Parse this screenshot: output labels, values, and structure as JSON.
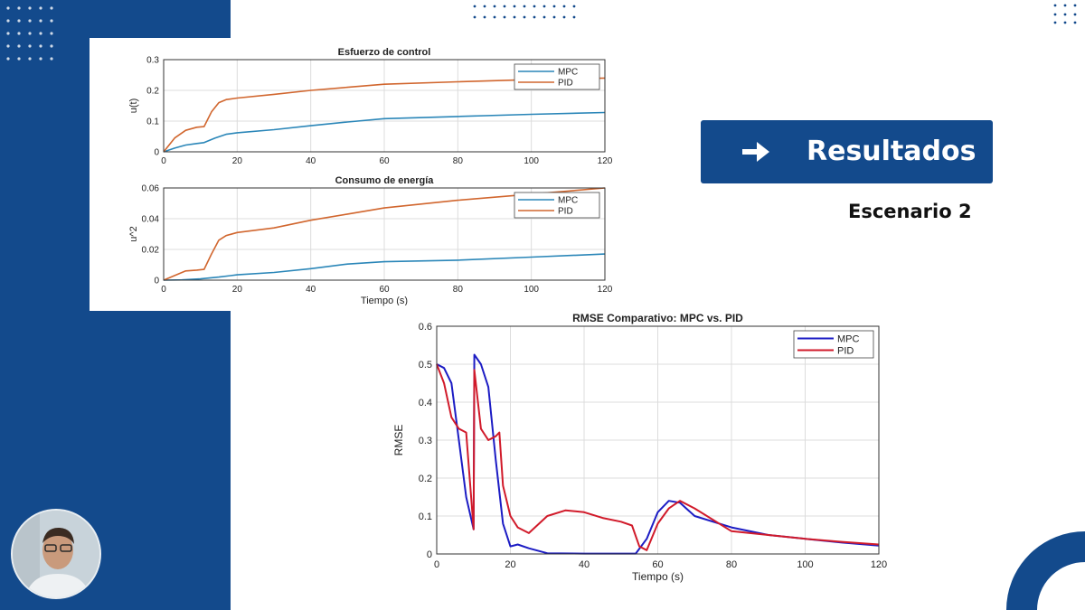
{
  "slide": {
    "title": "Resultados",
    "subtitle": "Escenario 2",
    "colors": {
      "band": "#134a8c",
      "accent_box": "#134a8c"
    }
  },
  "icons": {
    "title_arrow": "arrow-right-icon",
    "presenter": "presenter-webcam"
  },
  "chart_data": [
    {
      "type": "line",
      "title": "Esfuerzo de control",
      "xlabel": "",
      "ylabel": "u(t)",
      "xlim": [
        0,
        120
      ],
      "ylim": [
        0,
        0.3
      ],
      "xticks": [
        "0",
        "20",
        "40",
        "60",
        "80",
        "100",
        "120"
      ],
      "yticks": [
        "0",
        "0.1",
        "0.2",
        "0.3"
      ],
      "grid": true,
      "legend": "top-right",
      "series": [
        {
          "name": "MPC",
          "color": "#2a86b8",
          "x": [
            0,
            3,
            6,
            9,
            11,
            14,
            17,
            20,
            30,
            40,
            50,
            60,
            80,
            100,
            120
          ],
          "y": [
            0,
            0.012,
            0.022,
            0.027,
            0.03,
            0.045,
            0.057,
            0.062,
            0.072,
            0.085,
            0.097,
            0.108,
            0.115,
            0.122,
            0.128
          ]
        },
        {
          "name": "PID",
          "color": "#d1662e",
          "x": [
            0,
            3,
            6,
            9,
            11,
            13,
            15,
            17,
            20,
            30,
            40,
            50,
            60,
            80,
            100,
            120
          ],
          "y": [
            0,
            0.045,
            0.07,
            0.08,
            0.082,
            0.13,
            0.16,
            0.17,
            0.175,
            0.187,
            0.2,
            0.21,
            0.22,
            0.228,
            0.235,
            0.24
          ]
        }
      ]
    },
    {
      "type": "line",
      "title": "Consumo de energía",
      "xlabel": "Tiempo (s)",
      "ylabel": "u^2",
      "xlim": [
        0,
        120
      ],
      "ylim": [
        0,
        0.06
      ],
      "xticks": [
        "0",
        "20",
        "40",
        "60",
        "80",
        "100",
        "120"
      ],
      "yticks": [
        "0",
        "0.02",
        "0.04",
        "0.06"
      ],
      "grid": true,
      "legend": "top-right",
      "series": [
        {
          "name": "MPC",
          "color": "#2a86b8",
          "x": [
            0,
            5,
            10,
            15,
            20,
            30,
            40,
            50,
            60,
            80,
            100,
            120
          ],
          "y": [
            0,
            0.0002,
            0.0008,
            0.002,
            0.0035,
            0.005,
            0.0075,
            0.0105,
            0.012,
            0.013,
            0.015,
            0.017
          ]
        },
        {
          "name": "PID",
          "color": "#d1662e",
          "x": [
            0,
            3,
            6,
            9,
            11,
            13,
            15,
            17,
            20,
            30,
            40,
            50,
            60,
            80,
            100,
            120
          ],
          "y": [
            0,
            0.003,
            0.006,
            0.0065,
            0.007,
            0.017,
            0.026,
            0.029,
            0.031,
            0.034,
            0.039,
            0.043,
            0.047,
            0.052,
            0.056,
            0.06
          ]
        }
      ]
    },
    {
      "type": "line",
      "title": "RMSE Comparativo: MPC vs. PID",
      "xlabel": "Tiempo (s)",
      "ylabel": "RMSE",
      "xlim": [
        0,
        120
      ],
      "ylim": [
        0,
        0.6
      ],
      "xticks": [
        "0",
        "20",
        "40",
        "60",
        "80",
        "100",
        "120"
      ],
      "yticks": [
        "0",
        "0.1",
        "0.2",
        "0.3",
        "0.4",
        "0.5",
        "0.6"
      ],
      "grid": true,
      "legend": "top-right",
      "series": [
        {
          "name": "MPC",
          "color": "#1c1cc4",
          "x": [
            0,
            2,
            4,
            6,
            8,
            10,
            10.2,
            12,
            14,
            16,
            18,
            20,
            22,
            25,
            30,
            40,
            50,
            54,
            57,
            60,
            63,
            66,
            70,
            80,
            90,
            100,
            110,
            120
          ],
          "y": [
            0.5,
            0.49,
            0.45,
            0.3,
            0.15,
            0.065,
            0.525,
            0.5,
            0.44,
            0.25,
            0.08,
            0.02,
            0.025,
            0.015,
            0.002,
            0.001,
            0.001,
            0.001,
            0.04,
            0.11,
            0.14,
            0.135,
            0.1,
            0.07,
            0.05,
            0.04,
            0.03,
            0.022
          ]
        },
        {
          "name": "PID",
          "color": "#d11a2a",
          "x": [
            0,
            2,
            4,
            6,
            8,
            10,
            10.2,
            12,
            14,
            16,
            17,
            18,
            20,
            22,
            25,
            30,
            35,
            40,
            45,
            50,
            53,
            55,
            57,
            60,
            63,
            66,
            70,
            80,
            90,
            100,
            110,
            120
          ],
          "y": [
            0.5,
            0.45,
            0.36,
            0.33,
            0.32,
            0.065,
            0.485,
            0.33,
            0.3,
            0.31,
            0.32,
            0.18,
            0.1,
            0.07,
            0.055,
            0.1,
            0.115,
            0.11,
            0.095,
            0.085,
            0.075,
            0.02,
            0.01,
            0.08,
            0.12,
            0.14,
            0.12,
            0.06,
            0.05,
            0.04,
            0.032,
            0.025
          ]
        }
      ]
    }
  ]
}
